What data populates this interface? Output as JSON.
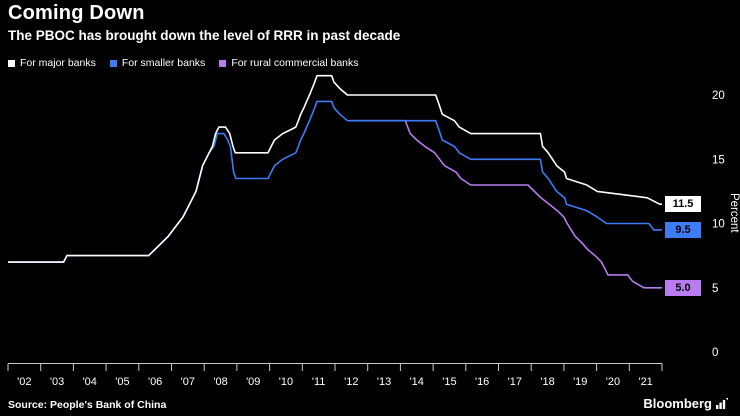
{
  "chart_data": {
    "type": "line",
    "title": "Coming Down",
    "subtitle": "The PBOC has brought down the level of RRR in past decade",
    "ylabel": "Percent",
    "x_range": [
      2002,
      2022
    ],
    "ylim": [
      0,
      22
    ],
    "grid": false,
    "legend_position": "top-left",
    "y_ticks": [
      0,
      5,
      10,
      15,
      20
    ],
    "x_tick_labels": [
      "'02",
      "'03",
      "'04",
      "'05",
      "'06",
      "'07",
      "'08",
      "'09",
      "'10",
      "'11",
      "'12",
      "'13",
      "'14",
      "'15",
      "'16",
      "'17",
      "'18",
      "'19",
      "'20",
      "'21"
    ],
    "axis_color": "#c8c8c8",
    "text_color": "#ffffff",
    "background_color": "#000000",
    "series": [
      {
        "id": "major-banks",
        "name": "For major banks",
        "color": "#ffffff",
        "end_value": 11.5,
        "end_label": "11.5",
        "points": [
          [
            2002,
            7
          ],
          [
            2003.7,
            7
          ],
          [
            2003.8,
            7.5
          ],
          [
            2006.3,
            7.5
          ],
          [
            2006.5,
            8
          ],
          [
            2006.7,
            8.5
          ],
          [
            2006.9,
            9
          ],
          [
            2007.05,
            9.5
          ],
          [
            2007.2,
            10
          ],
          [
            2007.35,
            10.5
          ],
          [
            2007.45,
            11
          ],
          [
            2007.55,
            11.5
          ],
          [
            2007.65,
            12
          ],
          [
            2007.75,
            12.5
          ],
          [
            2007.85,
            13.5
          ],
          [
            2007.95,
            14.5
          ],
          [
            2008.05,
            15
          ],
          [
            2008.15,
            15.5
          ],
          [
            2008.25,
            16
          ],
          [
            2008.35,
            17
          ],
          [
            2008.45,
            17.5
          ],
          [
            2008.65,
            17.5
          ],
          [
            2008.78,
            17
          ],
          [
            2008.88,
            16
          ],
          [
            2008.95,
            15.5
          ],
          [
            2009.95,
            15.5
          ],
          [
            2010.05,
            16
          ],
          [
            2010.15,
            16.5
          ],
          [
            2010.4,
            17
          ],
          [
            2010.8,
            17.5
          ],
          [
            2010.88,
            18
          ],
          [
            2010.95,
            18.5
          ],
          [
            2011.05,
            19
          ],
          [
            2011.13,
            19.5
          ],
          [
            2011.22,
            20
          ],
          [
            2011.3,
            20.5
          ],
          [
            2011.38,
            21
          ],
          [
            2011.45,
            21.5
          ],
          [
            2011.9,
            21.5
          ],
          [
            2011.97,
            21
          ],
          [
            2012.15,
            20.5
          ],
          [
            2012.38,
            20
          ],
          [
            2015.08,
            20
          ],
          [
            2015.15,
            19.5
          ],
          [
            2015.28,
            18.5
          ],
          [
            2015.65,
            18
          ],
          [
            2015.8,
            17.5
          ],
          [
            2016.15,
            17
          ],
          [
            2018.28,
            17
          ],
          [
            2018.35,
            16
          ],
          [
            2018.52,
            15.5
          ],
          [
            2018.78,
            14.5
          ],
          [
            2019.02,
            14
          ],
          [
            2019.08,
            13.5
          ],
          [
            2019.7,
            13
          ],
          [
            2020.02,
            12.5
          ],
          [
            2021.55,
            12
          ],
          [
            2021.93,
            11.5
          ],
          [
            2022,
            11.5
          ]
        ]
      },
      {
        "id": "smaller-banks",
        "name": "For smaller banks",
        "color": "#3d7bf7",
        "end_value": 9.5,
        "end_label": "9.5",
        "points": [
          [
            2002,
            7
          ],
          [
            2003.7,
            7
          ],
          [
            2003.8,
            7.5
          ],
          [
            2006.3,
            7.5
          ],
          [
            2006.5,
            8
          ],
          [
            2006.7,
            8.5
          ],
          [
            2006.9,
            9
          ],
          [
            2007.05,
            9.5
          ],
          [
            2007.2,
            10
          ],
          [
            2007.35,
            10.5
          ],
          [
            2007.45,
            11
          ],
          [
            2007.55,
            11.5
          ],
          [
            2007.65,
            12
          ],
          [
            2007.75,
            12.5
          ],
          [
            2007.85,
            13.5
          ],
          [
            2007.95,
            14.5
          ],
          [
            2008.05,
            15
          ],
          [
            2008.15,
            15.5
          ],
          [
            2008.3,
            16
          ],
          [
            2008.4,
            17
          ],
          [
            2008.6,
            17
          ],
          [
            2008.72,
            16.5
          ],
          [
            2008.8,
            16
          ],
          [
            2008.9,
            14
          ],
          [
            2008.97,
            13.5
          ],
          [
            2009.95,
            13.5
          ],
          [
            2010.05,
            14
          ],
          [
            2010.15,
            14.5
          ],
          [
            2010.4,
            15
          ],
          [
            2010.8,
            15.5
          ],
          [
            2010.88,
            16
          ],
          [
            2010.95,
            16.5
          ],
          [
            2011.05,
            17
          ],
          [
            2011.13,
            17.5
          ],
          [
            2011.22,
            18
          ],
          [
            2011.3,
            18.5
          ],
          [
            2011.38,
            19
          ],
          [
            2011.45,
            19.5
          ],
          [
            2011.9,
            19.5
          ],
          [
            2011.97,
            19
          ],
          [
            2012.15,
            18.5
          ],
          [
            2012.38,
            18
          ],
          [
            2015.08,
            18
          ],
          [
            2015.15,
            17.5
          ],
          [
            2015.28,
            16.5
          ],
          [
            2015.65,
            16
          ],
          [
            2015.8,
            15.5
          ],
          [
            2016.15,
            15
          ],
          [
            2018.28,
            15
          ],
          [
            2018.35,
            14
          ],
          [
            2018.52,
            13.5
          ],
          [
            2018.78,
            12.5
          ],
          [
            2019.02,
            12
          ],
          [
            2019.08,
            11.5
          ],
          [
            2019.7,
            11
          ],
          [
            2020.02,
            10.5
          ],
          [
            2020.3,
            10
          ],
          [
            2021.6,
            10
          ],
          [
            2021.75,
            9.5
          ],
          [
            2022,
            9.5
          ]
        ]
      },
      {
        "id": "rural-commercial-banks",
        "name": "For rural commercial banks",
        "color": "#b87bf0",
        "end_value": 5.0,
        "end_label": "5.0",
        "points": [
          [
            2012.5,
            18
          ],
          [
            2014.15,
            18
          ],
          [
            2014.3,
            17
          ],
          [
            2014.5,
            16.5
          ],
          [
            2014.75,
            16
          ],
          [
            2015.05,
            15.5
          ],
          [
            2015.2,
            15
          ],
          [
            2015.35,
            14.5
          ],
          [
            2015.7,
            14
          ],
          [
            2015.85,
            13.5
          ],
          [
            2016.15,
            13
          ],
          [
            2017.9,
            13
          ],
          [
            2018.3,
            12
          ],
          [
            2018.55,
            11.5
          ],
          [
            2018.8,
            11
          ],
          [
            2019.0,
            10.5
          ],
          [
            2019.1,
            10
          ],
          [
            2019.35,
            9
          ],
          [
            2019.55,
            8.5
          ],
          [
            2019.72,
            8
          ],
          [
            2019.95,
            7.5
          ],
          [
            2020.15,
            7
          ],
          [
            2020.35,
            6
          ],
          [
            2020.95,
            6
          ],
          [
            2021.1,
            5.5
          ],
          [
            2021.45,
            5
          ],
          [
            2022,
            5
          ]
        ]
      }
    ]
  },
  "footer": {
    "source": "Source: People's Bank of China",
    "brand": "Bloomberg"
  }
}
